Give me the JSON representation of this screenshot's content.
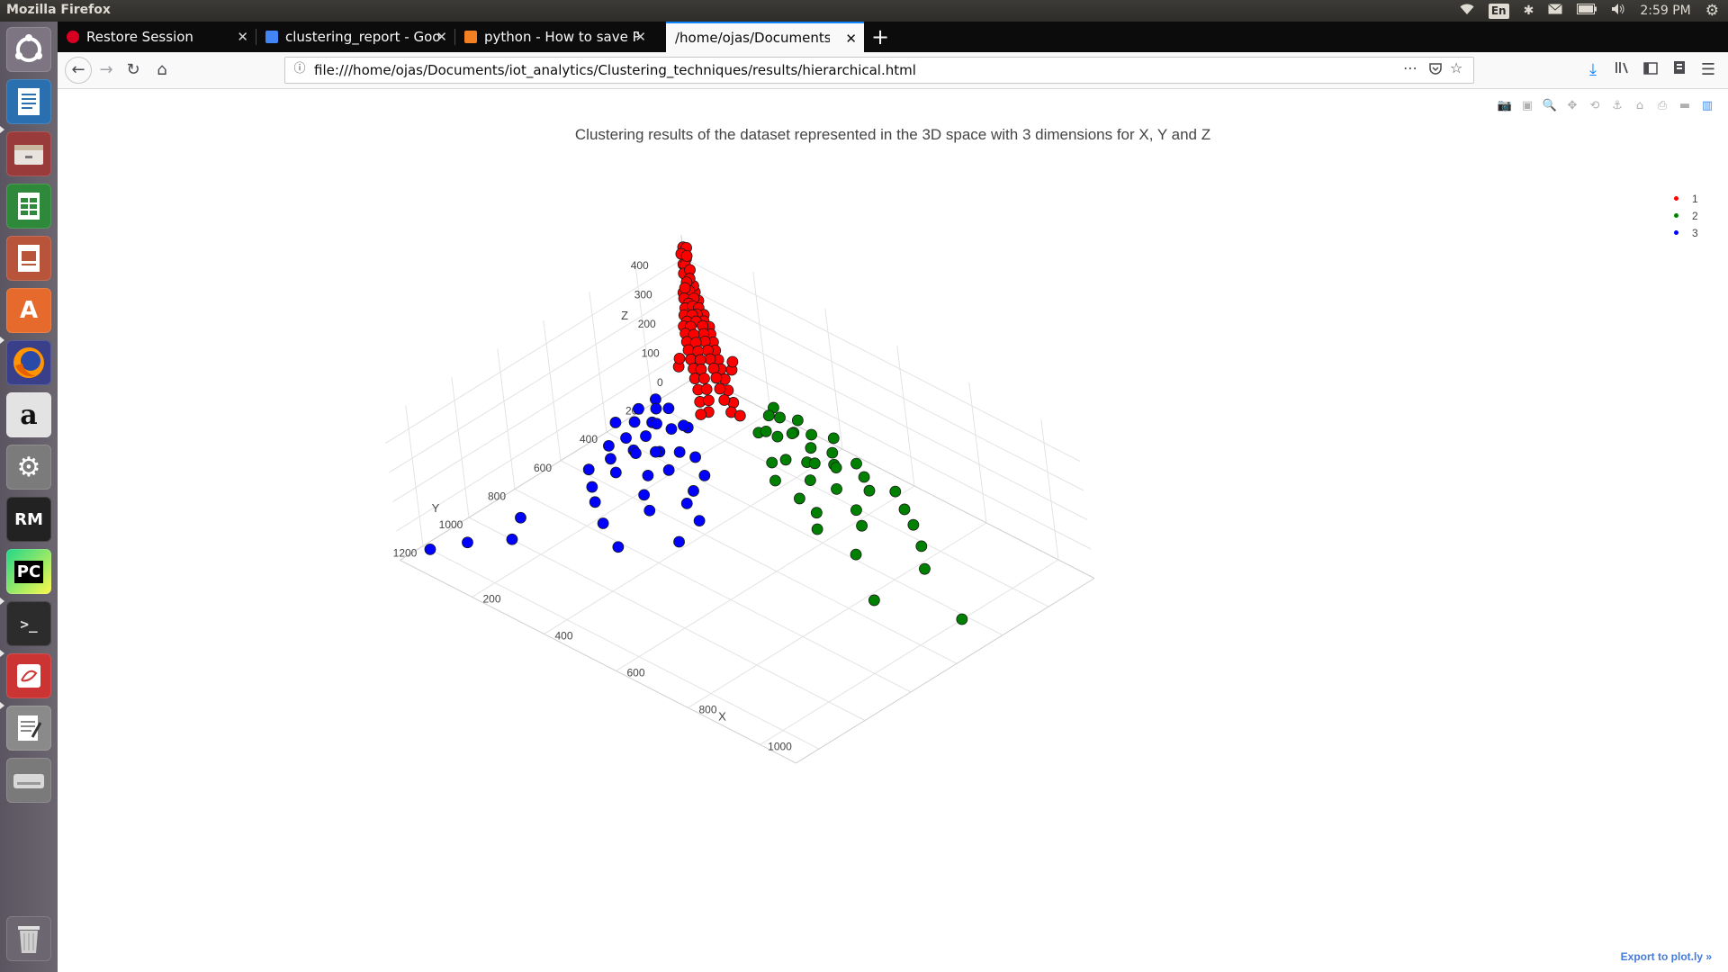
{
  "topbar": {
    "app_title": "Mozilla Firefox",
    "lang": "En",
    "time": "2:59 PM"
  },
  "launcher": {
    "items": [
      "ubuntu-logo",
      "writer",
      "files",
      "calc",
      "impress",
      "software-center",
      "firefox",
      "amazon",
      "system-settings",
      "rapidminer",
      "pycharm",
      "terminal",
      "draw",
      "text-editor",
      "disk",
      "trash"
    ],
    "rm_label": "RM",
    "pc_label": "PC"
  },
  "tabs": [
    {
      "label": "Restore Session",
      "favicon_color": "#d70022"
    },
    {
      "label": "clustering_report - Goo",
      "favicon_color": "#4285f4"
    },
    {
      "label": "python - How to save Plo",
      "favicon_color": "#f48024"
    },
    {
      "label": "/home/ojas/Documents/io",
      "favicon_color": "#ffffff"
    }
  ],
  "navbar": {
    "url": "file:///home/ojas/Documents/iot_analytics/Clustering_techniques/results/hierarchical.html"
  },
  "plot": {
    "title": "Clustering results of the dataset represented in the 3D space with 3 dimensions for X, Y and Z",
    "export_link": "Export to plot.ly »",
    "legend": [
      {
        "name": "1",
        "color": "#ff0000"
      },
      {
        "name": "2",
        "color": "#008000"
      },
      {
        "name": "3",
        "color": "#0000ff"
      }
    ]
  },
  "chart_data": {
    "type": "scatter",
    "subtype": "scatter3d",
    "title": "Clustering results of the dataset represented in the 3D space with 3 dimensions for X, Y and Z",
    "axes": {
      "x": {
        "label": "X",
        "ticks": [
          200,
          400,
          600,
          800,
          1000
        ],
        "range": [
          0,
          1100
        ]
      },
      "y": {
        "label": "Y",
        "ticks": [
          200,
          400,
          600,
          800,
          1000,
          1200
        ],
        "range": [
          0,
          1300
        ]
      },
      "z": {
        "label": "Z",
        "ticks": [
          0,
          100,
          200,
          300,
          400
        ],
        "range": [
          0,
          480
        ]
      }
    },
    "legend_position": "top-right",
    "series": [
      {
        "name": "1",
        "color": "#ff0000",
        "points": [
          [
            10,
            12,
            450
          ],
          [
            18,
            10,
            452
          ],
          [
            8,
            20,
            430
          ],
          [
            20,
            15,
            428
          ],
          [
            12,
            8,
            410
          ],
          [
            14,
            18,
            395
          ],
          [
            6,
            14,
            390
          ],
          [
            22,
            12,
            380
          ],
          [
            16,
            6,
            372
          ],
          [
            10,
            22,
            365
          ],
          [
            24,
            20,
            355
          ],
          [
            12,
            14,
            350
          ],
          [
            18,
            26,
            342
          ],
          [
            8,
            8,
            335
          ],
          [
            28,
            14,
            330
          ],
          [
            14,
            30,
            322
          ],
          [
            20,
            22,
            312
          ],
          [
            26,
            8,
            305
          ],
          [
            6,
            28,
            300
          ],
          [
            32,
            24,
            295
          ],
          [
            12,
            36,
            288
          ],
          [
            36,
            12,
            284
          ],
          [
            22,
            34,
            276
          ],
          [
            30,
            30,
            270
          ],
          [
            40,
            20,
            265
          ],
          [
            16,
            42,
            260
          ],
          [
            44,
            36,
            254
          ],
          [
            36,
            44,
            250
          ],
          [
            50,
            16,
            246
          ],
          [
            18,
            52,
            242
          ],
          [
            48,
            48,
            238
          ],
          [
            56,
            28,
            234
          ],
          [
            28,
            58,
            230
          ],
          [
            60,
            40,
            226
          ],
          [
            40,
            62,
            222
          ],
          [
            66,
            22,
            218
          ],
          [
            24,
            68,
            216
          ],
          [
            70,
            54,
            212
          ],
          [
            54,
            72,
            208
          ],
          [
            76,
            34,
            205
          ],
          [
            34,
            78,
            202
          ],
          [
            80,
            66,
            198
          ],
          [
            66,
            84,
            194
          ],
          [
            88,
            44,
            190
          ],
          [
            44,
            90,
            186
          ],
          [
            94,
            78,
            182
          ],
          [
            78,
            96,
            178
          ],
          [
            100,
            56,
            175
          ],
          [
            56,
            104,
            172
          ],
          [
            108,
            92,
            168
          ],
          [
            92,
            110,
            164
          ],
          [
            116,
            70,
            160
          ],
          [
            70,
            118,
            156
          ],
          [
            124,
            104,
            152
          ],
          [
            104,
            128,
            148
          ],
          [
            132,
            86,
            146
          ],
          [
            86,
            134,
            142
          ],
          [
            140,
            120,
            138
          ],
          [
            120,
            142,
            134
          ],
          [
            150,
            100,
            130
          ],
          [
            100,
            152,
            126
          ],
          [
            160,
            138,
            122
          ],
          [
            138,
            162,
            118
          ],
          [
            170,
            120,
            114
          ],
          [
            120,
            172,
            110
          ],
          [
            182,
            156,
            106
          ],
          [
            156,
            184,
            102
          ],
          [
            196,
            140,
            98
          ],
          [
            140,
            198,
            94
          ],
          [
            210,
            172,
            90
          ],
          [
            172,
            212,
            86
          ],
          [
            226,
            160,
            82
          ],
          [
            160,
            228,
            78
          ],
          [
            60,
            90,
            140
          ],
          [
            90,
            60,
            150
          ],
          [
            130,
            40,
            120
          ],
          [
            40,
            130,
            118
          ],
          [
            150,
            60,
            170
          ],
          [
            60,
            150,
            168
          ]
        ]
      },
      {
        "name": "2",
        "color": "#008000",
        "points": [
          [
            240,
            40,
            60
          ],
          [
            270,
            60,
            55
          ],
          [
            300,
            30,
            50
          ],
          [
            320,
            80,
            45
          ],
          [
            350,
            50,
            42
          ],
          [
            380,
            100,
            40
          ],
          [
            300,
            120,
            38
          ],
          [
            260,
            140,
            36
          ],
          [
            420,
            70,
            34
          ],
          [
            450,
            110,
            32
          ],
          [
            480,
            60,
            30
          ],
          [
            400,
            150,
            28
          ],
          [
            360,
            180,
            26
          ],
          [
            520,
            90,
            24
          ],
          [
            560,
            130,
            22
          ],
          [
            600,
            80,
            20
          ],
          [
            340,
            210,
            18
          ],
          [
            440,
            200,
            16
          ],
          [
            500,
            180,
            14
          ],
          [
            580,
            220,
            12
          ],
          [
            650,
            120,
            10
          ],
          [
            700,
            160,
            8
          ],
          [
            380,
            260,
            6
          ],
          [
            460,
            280,
            5
          ],
          [
            520,
            300,
            4
          ],
          [
            620,
            260,
            3
          ],
          [
            760,
            220,
            2
          ],
          [
            820,
            300,
            1
          ],
          [
            560,
            360,
            2
          ],
          [
            680,
            380,
            1
          ],
          [
            820,
            520,
            1
          ],
          [
            1000,
            420,
            1
          ],
          [
            260,
            90,
            70
          ],
          [
            290,
            150,
            64
          ],
          [
            330,
            100,
            58
          ],
          [
            400,
            30,
            52
          ],
          [
            430,
            160,
            48
          ],
          [
            470,
            130,
            44
          ]
        ]
      },
      {
        "name": "3",
        "color": "#0000ff",
        "points": [
          [
            40,
            240,
            60
          ],
          [
            60,
            270,
            55
          ],
          [
            30,
            300,
            50
          ],
          [
            80,
            320,
            45
          ],
          [
            50,
            350,
            42
          ],
          [
            100,
            380,
            40
          ],
          [
            120,
            300,
            38
          ],
          [
            140,
            260,
            36
          ],
          [
            70,
            420,
            34
          ],
          [
            110,
            450,
            32
          ],
          [
            60,
            480,
            30
          ],
          [
            150,
            400,
            28
          ],
          [
            180,
            360,
            26
          ],
          [
            90,
            520,
            24
          ],
          [
            130,
            560,
            22
          ],
          [
            80,
            600,
            20
          ],
          [
            210,
            340,
            18
          ],
          [
            200,
            440,
            16
          ],
          [
            180,
            500,
            14
          ],
          [
            220,
            580,
            12
          ],
          [
            120,
            650,
            10
          ],
          [
            160,
            700,
            8
          ],
          [
            260,
            380,
            6
          ],
          [
            280,
            460,
            5
          ],
          [
            300,
            520,
            4
          ],
          [
            260,
            620,
            3
          ],
          [
            220,
            760,
            2
          ],
          [
            300,
            820,
            1
          ],
          [
            360,
            560,
            2
          ],
          [
            380,
            680,
            1
          ],
          [
            80,
            900,
            1
          ],
          [
            120,
            1000,
            1
          ],
          [
            20,
            1200,
            1
          ],
          [
            60,
            1100,
            1
          ],
          [
            90,
            260,
            70
          ],
          [
            150,
            290,
            64
          ],
          [
            100,
            330,
            58
          ],
          [
            30,
            400,
            52
          ],
          [
            160,
            430,
            48
          ],
          [
            130,
            470,
            44
          ]
        ]
      }
    ]
  }
}
